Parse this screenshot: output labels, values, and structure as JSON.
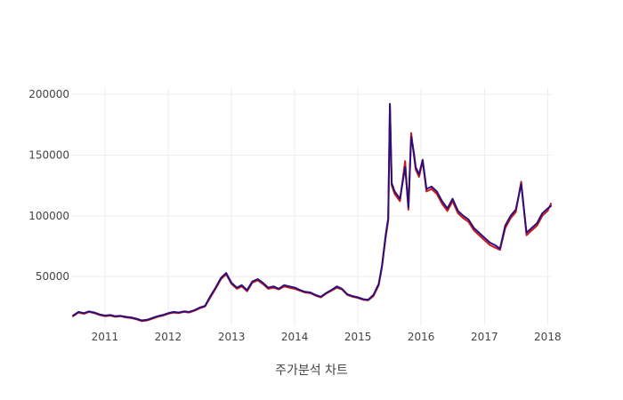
{
  "chart_data": {
    "type": "line",
    "xlabel": "주가분석 차트",
    "ylabel": "",
    "title": "",
    "ylim": [
      10000,
      205000
    ],
    "xlim": [
      "2010-06-20",
      "2018-01-25"
    ],
    "grid": true,
    "legend": "none",
    "x_ticks": [
      "2011",
      "2012",
      "2013",
      "2014",
      "2015",
      "2016",
      "2017",
      "2018"
    ],
    "y_ticks": [
      50000,
      100000,
      150000,
      200000
    ],
    "colors": {
      "series_a": "#cc1a1a",
      "series_b": "#2e0f7a",
      "grid": "#eeeeee",
      "text": "#444444"
    },
    "x": [
      "2010-07-01",
      "2010-08-01",
      "2010-09-01",
      "2010-10-01",
      "2010-11-01",
      "2010-12-01",
      "2011-01-01",
      "2011-02-01",
      "2011-03-01",
      "2011-04-01",
      "2011-05-01",
      "2011-06-01",
      "2011-07-01",
      "2011-08-01",
      "2011-09-01",
      "2011-10-01",
      "2011-11-01",
      "2011-12-01",
      "2012-01-01",
      "2012-02-01",
      "2012-03-01",
      "2012-04-01",
      "2012-05-01",
      "2012-06-01",
      "2012-07-01",
      "2012-08-01",
      "2012-09-01",
      "2012-10-01",
      "2012-11-01",
      "2012-12-01",
      "2013-01-01",
      "2013-02-01",
      "2013-03-01",
      "2013-04-01",
      "2013-05-01",
      "2013-06-01",
      "2013-07-01",
      "2013-08-01",
      "2013-09-01",
      "2013-10-01",
      "2013-11-01",
      "2013-12-01",
      "2014-01-01",
      "2014-02-01",
      "2014-03-01",
      "2014-04-01",
      "2014-05-01",
      "2014-06-01",
      "2014-07-01",
      "2014-08-01",
      "2014-09-01",
      "2014-10-01",
      "2014-11-01",
      "2014-12-01",
      "2015-01-01",
      "2015-02-01",
      "2015-03-01",
      "2015-04-01",
      "2015-05-01",
      "2015-05-20",
      "2015-06-10",
      "2015-06-25",
      "2015-07-05",
      "2015-07-15",
      "2015-08-01",
      "2015-09-01",
      "2015-10-01",
      "2015-10-20",
      "2015-11-05",
      "2015-11-20",
      "2015-12-01",
      "2015-12-20",
      "2016-01-10",
      "2016-02-01",
      "2016-03-01",
      "2016-04-01",
      "2016-05-01",
      "2016-06-01",
      "2016-07-01",
      "2016-08-01",
      "2016-09-01",
      "2016-10-01",
      "2016-11-01",
      "2016-12-01",
      "2017-01-01",
      "2017-02-01",
      "2017-03-01",
      "2017-04-01",
      "2017-05-01",
      "2017-06-01",
      "2017-07-01",
      "2017-08-01",
      "2017-09-01",
      "2017-10-01",
      "2017-11-01",
      "2017-12-01",
      "2018-01-01",
      "2018-01-20"
    ],
    "series": [
      {
        "values": [
          17500,
          20500,
          19500,
          21000,
          20000,
          18500,
          17500,
          18000,
          17000,
          17500,
          16500,
          16000,
          15000,
          13500,
          14000,
          15500,
          17000,
          18000,
          19500,
          20500,
          20000,
          21000,
          20500,
          22000,
          24000,
          25500,
          33000,
          40000,
          48000,
          52000,
          44000,
          40000,
          42000,
          38000,
          45000,
          47000,
          44000,
          40000,
          41000,
          39500,
          42000,
          41000,
          40000,
          38500,
          37000,
          36500,
          34500,
          33000,
          36000,
          38500,
          41000,
          39500,
          35000,
          33500,
          32500,
          31000,
          30500,
          34000,
          43000,
          58000,
          82000,
          96000,
          190000,
          125000,
          118000,
          112000,
          145000,
          105000,
          168000,
          150000,
          138000,
          132000,
          145000,
          120000,
          122000,
          118000,
          110000,
          104000,
          112000,
          102000,
          98000,
          95000,
          88000,
          84000,
          80000,
          76000,
          74000,
          72000,
          90000,
          98000,
          103000,
          128000,
          84000,
          88000,
          92000,
          100000,
          104000,
          110000
        ]
      },
      {
        "values": [
          18000,
          21000,
          20000,
          21500,
          20500,
          19000,
          18000,
          18500,
          17500,
          17800,
          17000,
          16500,
          15500,
          14000,
          14500,
          16000,
          17500,
          18500,
          20000,
          21000,
          20500,
          21500,
          21000,
          22500,
          24500,
          26000,
          34000,
          41000,
          49000,
          53000,
          45000,
          41000,
          43000,
          39000,
          46000,
          48000,
          45000,
          41000,
          42000,
          40000,
          43000,
          42000,
          41000,
          39000,
          37500,
          37000,
          35000,
          33500,
          36500,
          39000,
          42000,
          40000,
          35500,
          34000,
          33000,
          31500,
          31000,
          35000,
          44000,
          59000,
          84000,
          98000,
          192000,
          127000,
          120000,
          114000,
          140000,
          107000,
          165000,
          152000,
          140000,
          134000,
          146000,
          122000,
          124000,
          120000,
          112000,
          106000,
          114000,
          104000,
          100000,
          97000,
          90000,
          86000,
          82000,
          78000,
          76000,
          73000,
          92000,
          100000,
          105000,
          126000,
          86000,
          90000,
          94000,
          102000,
          106000,
          108000
        ]
      }
    ]
  }
}
